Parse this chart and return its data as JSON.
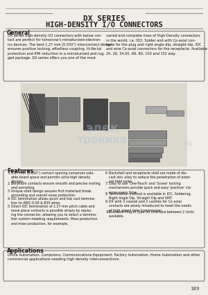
{
  "title_line1": "DX SERIES",
  "title_line2": "HIGH-DENSITY I/O CONNECTORS",
  "page_bg": "#f0ede8",
  "section_general_title": "General",
  "general_text_col1": "DX series high-density I/O connectors with below con-\ntact are perfect for tomorrow's miniaturized electron-\nics devices. The best 1.27 mm (0.050\") interconnect design\nensures positive locking, effortless coupling, Hi-Re-tal\nprotection and EMI reduction in a miniaturized and rug-\nged package. DX series offers you one of the most",
  "general_text_col2": "varied and complete lines of High-Density connectors\nin the world, i.e. IDO, Solder and with Co-axial con-\ntacts for the plug and right angle dip, straight dip, IDC\nand wire Co-axial connectors for the receptacle. Available in\n20, 26, 34,50, 68, 80, 100 and 152 way.",
  "section_features_title": "Features",
  "features_left": [
    "1.27 mm (0.050\") contact spacing conserves valu-\nable board space and permits ultra-high density\ndesigns.",
    "Beryllium contacts ensure smooth and precise mating\nand unmating.",
    "Unique shell design assures first mate/last break\ngrounding and overall noise protection.",
    "IDC termination allows quick and low cost termina-\ntion to AWG 0.08 & B30 wires.",
    "Direct IDC termination of 1.27 mm pitch cable and\nloose piece contacts is possible simply by replac-\ning the connector, allowing you to select a termina-\ntion system meeting requirements. Mass production\nand mass production, for example."
  ],
  "features_right": [
    "Backshell and receptacle shell are made of die-\ncast zinc alloy to reduce the penetration of exter-\nnal field noise.",
    "Easy to use 'One-Touch' and 'Screw' locking\nmechanisms provide quick and easy 'positive' clo-\nsures every time.",
    "Termination method is available in IDC, Soldering,\nRight Angle Dip, Straight Dip and SMT.",
    "DX with 3 coaxial and 3 cavities for Co-axial\ncontacts are wisely introduced to meet the needs\nof high speed data transmission.",
    "Standard Plug-in type for interface between 2 Units\navailable."
  ],
  "section_applications_title": "Applications",
  "applications_text": "Office Automation, Computers, Communications Equipment, Factory Automation, Home Automation and other\ncommercial applications needing high density interconnections.",
  "page_number": "189",
  "title_color": "#1a1a1a",
  "line_color": "#888877",
  "box_border_color": "#555555",
  "section_title_color": "#1a1a1a",
  "box_bg": "#f2efe9"
}
